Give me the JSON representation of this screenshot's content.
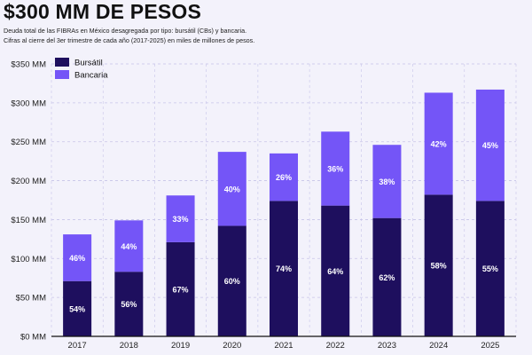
{
  "header": {
    "title": "$300 MM DE PESOS",
    "subtitle_line1": "Deuda total de las FIBRAs en México desagregada por tipo: bursátil (CBs) y bancaria.",
    "subtitle_line2": "Cifras al cierre del 3er trimestre de cada año (2017-2025) en miles de millones de pesos."
  },
  "colors": {
    "bursatil": "#1e0f5e",
    "bancaria": "#7455f7",
    "grid": "#c7c4e8",
    "background": "#f3f2fb"
  },
  "chart_data": {
    "type": "bar",
    "stacked": true,
    "title": "$300 MM DE PESOS",
    "xlabel": "",
    "ylabel": "",
    "ylim": [
      0,
      350
    ],
    "yticks": [
      0,
      50,
      100,
      150,
      200,
      250,
      300,
      350
    ],
    "ytick_labels": [
      "$0 MM",
      "$50 MM",
      "$100 MM",
      "$150 MM",
      "$200 MM",
      "$250 MM",
      "$300 MM",
      "$350 MM"
    ],
    "grid": true,
    "legend_position": "top-left",
    "categories": [
      "2017",
      "2018",
      "2019",
      "2020",
      "2021",
      "2022",
      "2023",
      "2024",
      "2025"
    ],
    "series": [
      {
        "name": "Bursátil",
        "color": "#1e0f5e",
        "values": [
          71,
          83,
          121,
          142,
          174,
          168,
          152,
          182,
          174
        ],
        "labels": [
          "54%",
          "56%",
          "67%",
          "60%",
          "74%",
          "64%",
          "62%",
          "58%",
          "55%"
        ]
      },
      {
        "name": "Bancaria",
        "color": "#7455f7",
        "values": [
          60,
          66,
          60,
          95,
          61,
          95,
          94,
          131,
          143
        ],
        "labels": [
          "46%",
          "44%",
          "33%",
          "40%",
          "26%",
          "36%",
          "38%",
          "42%",
          "45%"
        ]
      }
    ]
  }
}
